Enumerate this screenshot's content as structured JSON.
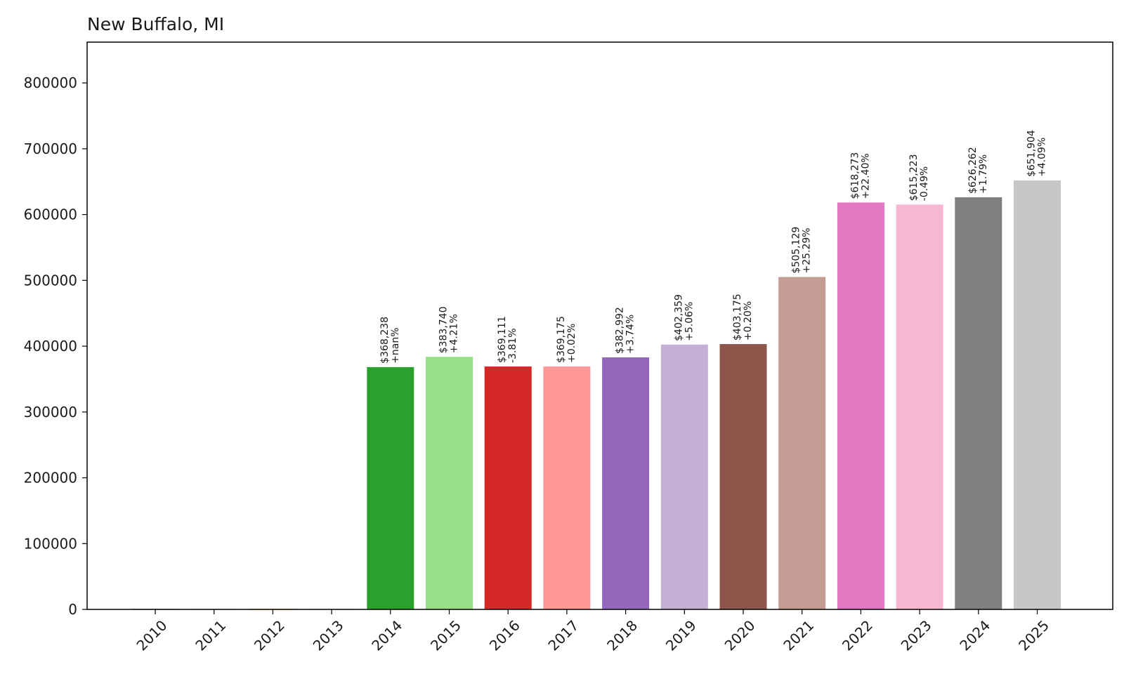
{
  "chart_data": {
    "type": "bar",
    "title": "New Buffalo, MI",
    "xlabel": "",
    "ylabel": "",
    "ylim": [
      0,
      862000
    ],
    "yticks": [
      0,
      100000,
      200000,
      300000,
      400000,
      500000,
      600000,
      700000,
      800000
    ],
    "grid": false,
    "categories": [
      "2010",
      "2011",
      "2012",
      "2013",
      "2014",
      "2015",
      "2016",
      "2017",
      "2018",
      "2019",
      "2020",
      "2021",
      "2022",
      "2023",
      "2024",
      "2025"
    ],
    "values": [
      0,
      0,
      0,
      0,
      368238,
      383740,
      369111,
      369175,
      382992,
      402359,
      403175,
      505129,
      618273,
      615223,
      626262,
      651904
    ],
    "value_labels": [
      "",
      "",
      "",
      "",
      "$368,238",
      "$383,740",
      "$369,111",
      "$369,175",
      "$382,992",
      "$402,359",
      "$403,175",
      "$505,129",
      "$618,273",
      "$615,223",
      "$626,262",
      "$651,904"
    ],
    "change_labels": [
      "",
      "",
      "",
      "",
      "+nan%",
      "+4.21%",
      "-3.81%",
      "+0.02%",
      "+3.74%",
      "+5.06%",
      "+0.20%",
      "+25.29%",
      "+22.40%",
      "-0.49%",
      "+1.79%",
      "+4.09%"
    ],
    "colors": [
      "#1f77b4",
      "#aec7e8",
      "#ff7f0e",
      "#ffbb78",
      "#2ca02c",
      "#98df8a",
      "#d62728",
      "#ff9896",
      "#9467bd",
      "#c5b0d5",
      "#8c564b",
      "#c49c94",
      "#e377c2",
      "#f7b6d2",
      "#7f7f7f",
      "#c7c7c7"
    ]
  }
}
